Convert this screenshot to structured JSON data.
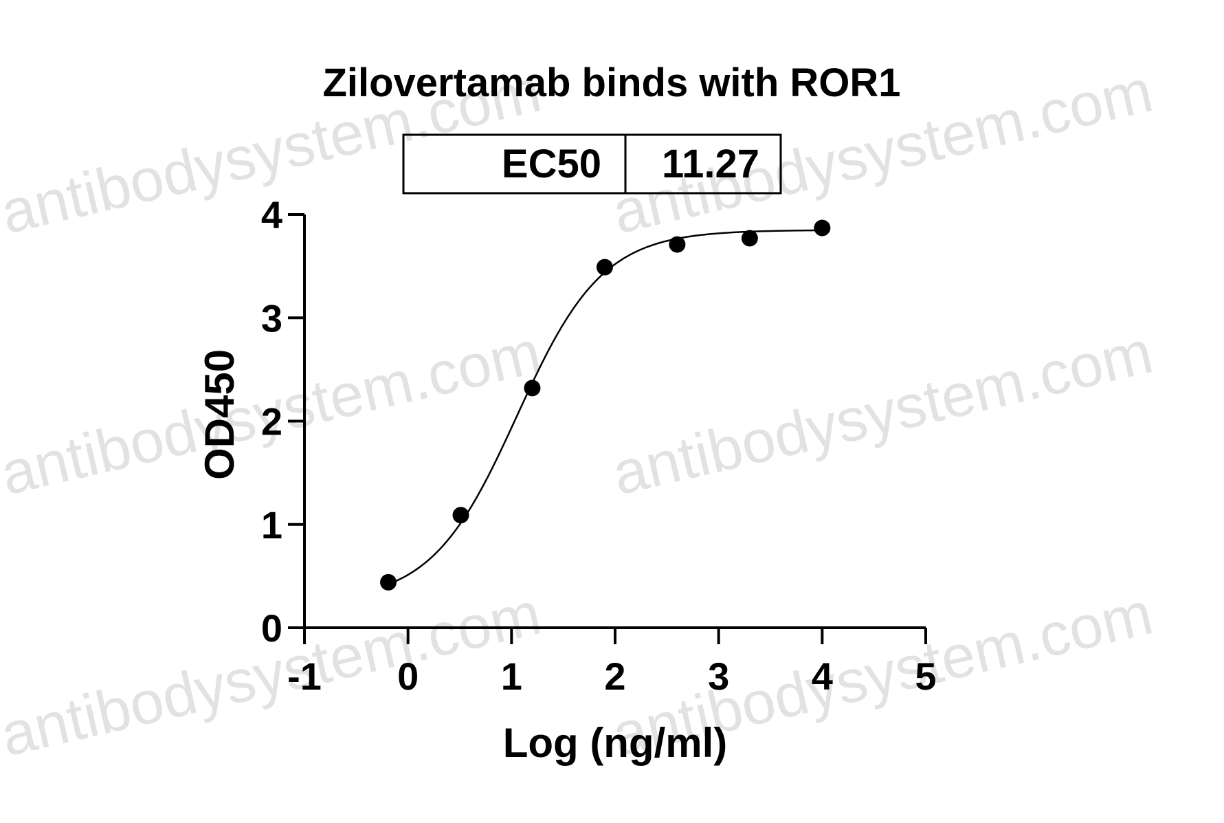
{
  "watermark": "antibodysystem.com",
  "chart_data": {
    "type": "scatter",
    "title": "Zilovertamab binds with ROR1",
    "xlabel": "Log (ng/ml)",
    "ylabel": "OD450",
    "xlim": [
      -1,
      5
    ],
    "ylim": [
      0,
      4
    ],
    "xticks": [
      "-1",
      "0",
      "1",
      "2",
      "3",
      "4",
      "5"
    ],
    "yticks": [
      "0",
      "1",
      "2",
      "3",
      "4"
    ],
    "grid": false,
    "legend": "none",
    "x": [
      -0.19,
      0.51,
      1.2,
      1.9,
      2.6,
      3.3,
      4.0
    ],
    "y": [
      0.44,
      1.09,
      2.32,
      3.49,
      3.71,
      3.77,
      3.87
    ],
    "fit": {
      "model": "4PL",
      "bottom": 0.25,
      "top": 3.85,
      "logEC50": 1.052,
      "hill": 1.05
    },
    "ec50_table": {
      "label": "EC50",
      "value": "11.27"
    },
    "colors": {
      "marker": "#000000",
      "curve": "#000000",
      "axis": "#000000"
    }
  }
}
